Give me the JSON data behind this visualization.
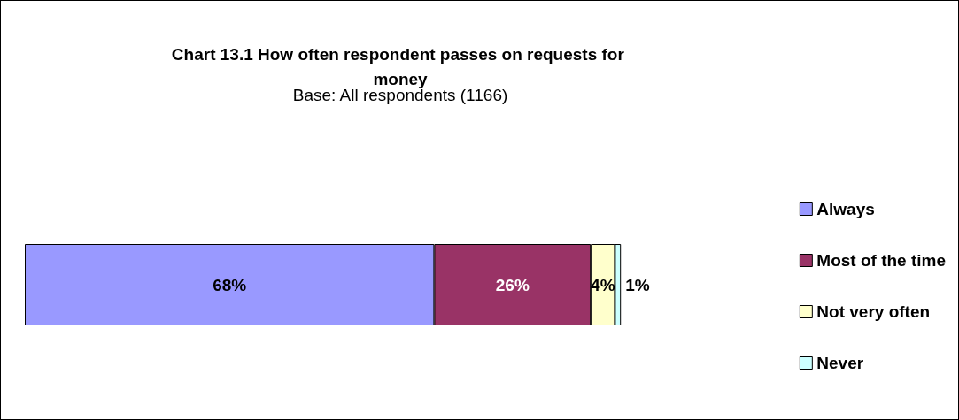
{
  "chart_data": {
    "type": "bar",
    "orientation": "horizontal",
    "stacked": true,
    "title": "Chart 13.1 How often respondent passes on requests for money",
    "subtitle": "Base: All respondents (1166)",
    "categories": [
      null
    ],
    "series": [
      {
        "name": "Always",
        "color": "#9999ff",
        "values": [
          68
        ],
        "value_labels": [
          "68%"
        ]
      },
      {
        "name": "Most of the time",
        "color": "#993366",
        "values": [
          26
        ],
        "value_labels": [
          "26%"
        ]
      },
      {
        "name": "Not very often",
        "color": "#ffffcc",
        "values": [
          4
        ],
        "value_labels": [
          "4%"
        ]
      },
      {
        "name": "Never",
        "color": "#ccffff",
        "values": [
          1
        ],
        "value_labels": [
          "1%"
        ]
      }
    ],
    "legend": "right"
  }
}
